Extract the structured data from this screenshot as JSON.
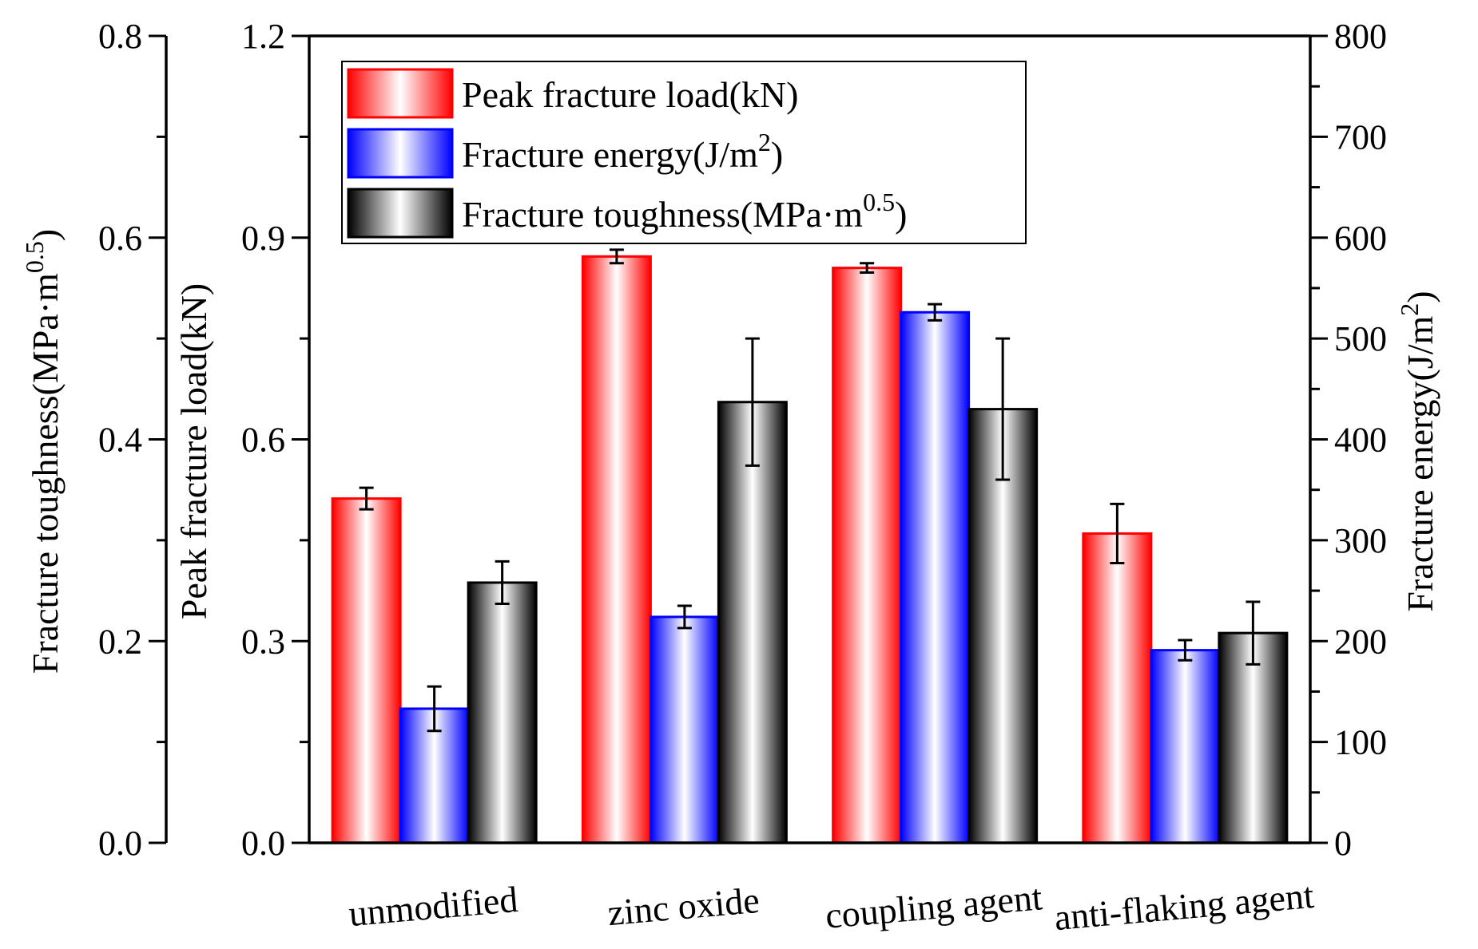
{
  "chart_data": {
    "type": "bar",
    "categories": [
      "unmodified",
      "zinc oxide",
      "coupling agent",
      "anti-flaking agent"
    ],
    "series": [
      {
        "name": "Peak fracture load(kN)",
        "legend_main": "Peak fracture load(kN)",
        "legend_sup": "",
        "legend_tail": "",
        "axis": "left_inner",
        "color": "#ff0000",
        "values": [
          0.512,
          0.872,
          0.855,
          0.46
        ],
        "errors": [
          0.016,
          0.01,
          0.007,
          0.044
        ]
      },
      {
        "name": "Fracture energy(J/m2)",
        "legend_main": "Fracture energy(J/m",
        "legend_sup": "2",
        "legend_tail": ")",
        "axis": "right",
        "color": "#0000ff",
        "values": [
          133,
          224,
          526,
          191
        ],
        "errors": [
          22,
          11,
          8,
          10
        ]
      },
      {
        "name": "Fracture toughness(MPa·m0.5)",
        "legend_main": "Fracture toughness(MPa·m",
        "legend_sup": "0.5",
        "legend_tail": ")",
        "axis": "left_outer",
        "color": "#000000",
        "values": [
          0.258,
          0.437,
          0.43,
          0.208
        ],
        "errors": [
          0.021,
          0.063,
          0.07,
          0.031
        ]
      }
    ],
    "axes": {
      "left_outer": {
        "title_main": "Fracture toughness(MPa·m",
        "title_sup": "0.5",
        "title_tail": ")",
        "ylim": [
          0,
          0.8
        ],
        "ticks": [
          "0.0",
          "0.2",
          "0.4",
          "0.6",
          "0.8"
        ]
      },
      "left_inner": {
        "title_main": "Peak fracture load(kN)",
        "title_sup": "",
        "title_tail": "",
        "ylim": [
          0,
          1.2
        ],
        "ticks": [
          "0.0",
          "0.3",
          "0.6",
          "0.9",
          "1.2"
        ]
      },
      "right": {
        "title_main": "Fracture energy(J/m",
        "title_sup": "2",
        "title_tail": ")",
        "ylim": [
          0,
          800
        ],
        "ticks": [
          "0",
          "100",
          "200",
          "300",
          "400",
          "500",
          "600",
          "700",
          "800"
        ]
      }
    },
    "legend_position": "top-left"
  }
}
